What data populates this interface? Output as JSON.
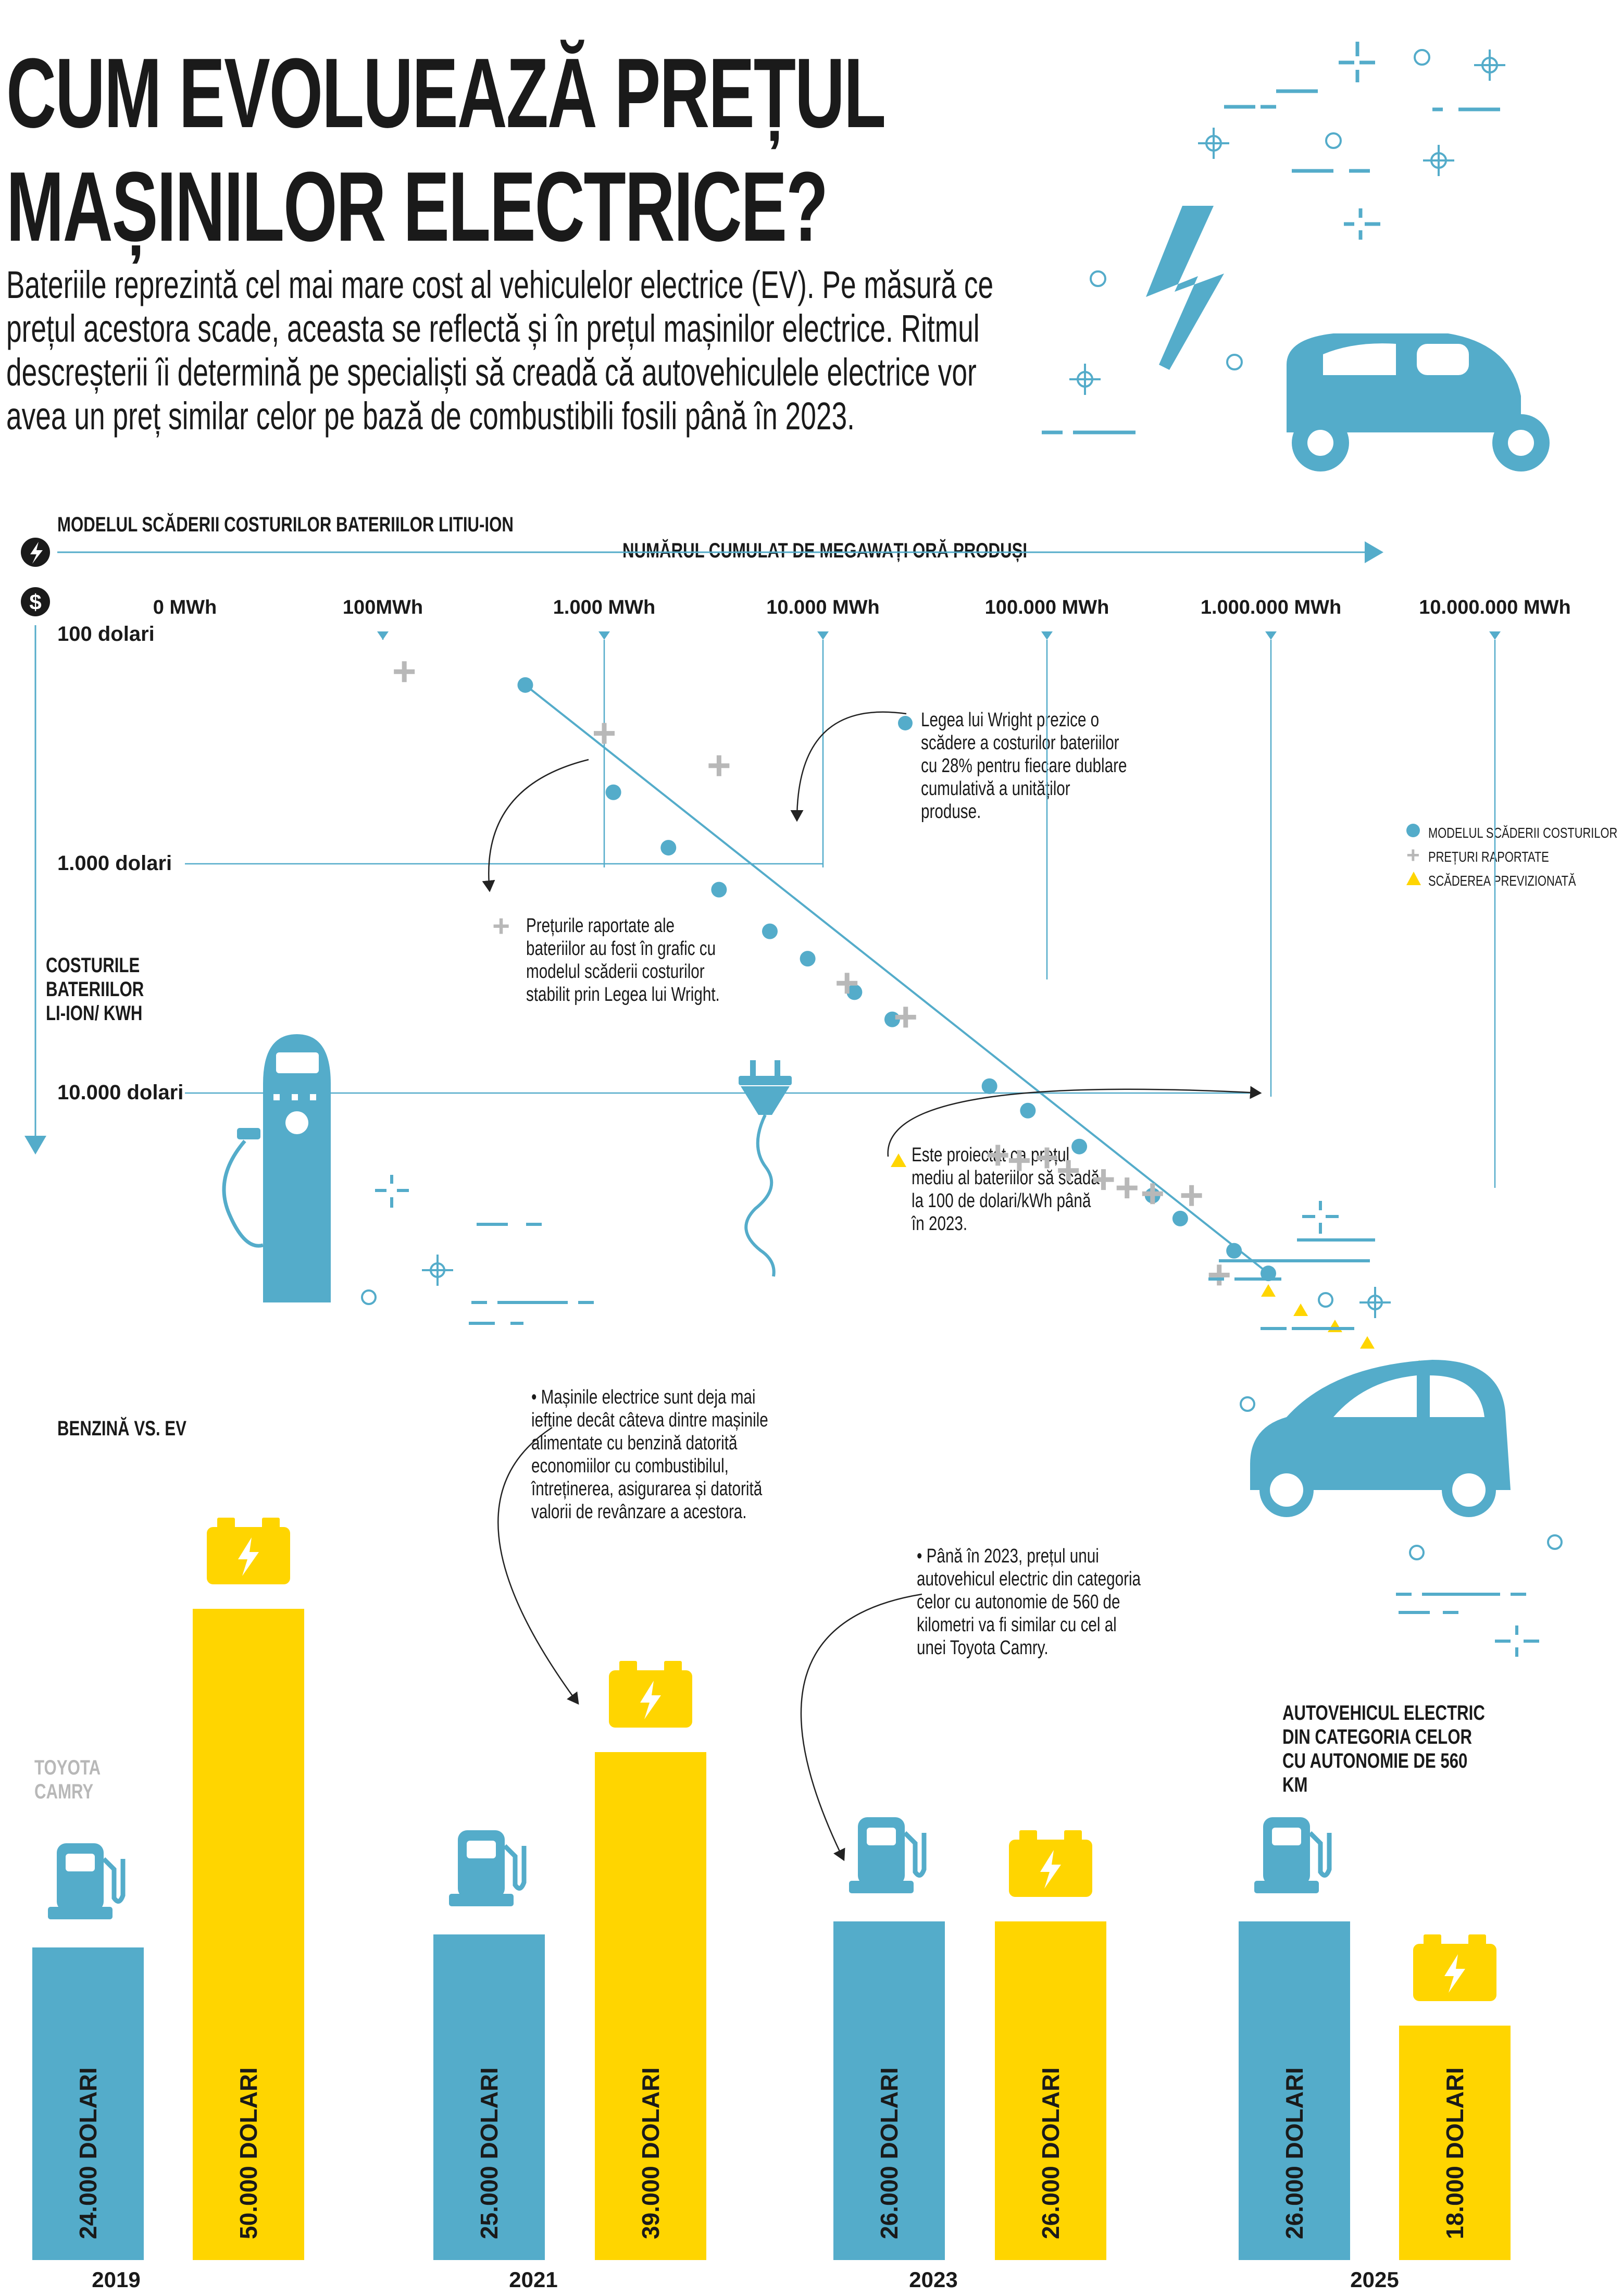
{
  "title": {
    "line1": "CUM EVOLUEAZĂ PREȚUL",
    "line2": "MAȘINILOR ELECTRICE?"
  },
  "intro": "Bateriile reprezintă cel mai mare cost al vehiculelor electrice (EV). Pe măsură ce prețul acestora scade, aceasta se reflectă și în prețul mașinilor electrice. Ritmul descreșterii îi determină pe specialiști să creadă că autovehiculele electrice vor avea un preț similar celor pe bază de combustibili fosili până în 2023.",
  "colors": {
    "blue": "#54acca",
    "yellow": "#ffd500",
    "gray": "#b8b8b8",
    "text": "#1a1a1a"
  },
  "chart_data": [
    {
      "type": "scatter",
      "title": "MODELUL SCĂDERII COSTURILOR BATERIILOR LITIU-ION",
      "xlabel": "NUMĂRUL CUMULAT DE MEGAWAȚI ORĂ PRODUȘI",
      "ylabel": "COSTURILE BATERIILOR LI-ION/ KWH",
      "x_ticks": [
        "0 MWh",
        "100MWh",
        "1.000 MWh",
        "10.000 MWh",
        "100.000 MWh",
        "1.000.000 MWh",
        "10.000.000 MWh"
      ],
      "y_ticks": [
        "100 dolari",
        "1.000 dolari",
        "10.000 dolari"
      ],
      "x_scale": "log",
      "legend": [
        "MODELUL SCĂDERII COSTURILOR",
        "PREȚURI RAPORTATE",
        "SCĂDEREA PREVIZIONATĂ"
      ],
      "legend_position": "right",
      "series": [
        {
          "name": "MODELUL SCĂDERII COSTURILOR",
          "marker": "circle",
          "color": "#54acca",
          "points": [
            [
              440,
              16
            ],
            [
              1100,
              47
            ],
            [
              1950,
              82
            ],
            [
              3300,
              125
            ],
            [
              5600,
              190
            ],
            [
              8300,
              250
            ],
            [
              13500,
              350
            ],
            [
              20000,
              460
            ],
            [
              55000,
              900
            ],
            [
              82000,
              1150
            ],
            [
              140000,
              1650
            ],
            [
              300000,
              2700
            ],
            [
              400000,
              3400
            ],
            [
              700000,
              4700
            ],
            [
              1000000,
              5900
            ]
          ]
        },
        {
          "name": "PREȚURI RAPORTATE",
          "marker": "plus",
          "color": "#b8b8b8",
          "points": [
            [
              125,
              14
            ],
            [
              1000,
              26
            ],
            [
              3300,
              36
            ],
            [
              12500,
              320
            ],
            [
              23000,
              450
            ],
            [
              60000,
              1800
            ],
            [
              75000,
              1900
            ],
            [
              100000,
              1850
            ],
            [
              125000,
              2100
            ],
            [
              180000,
              2300
            ],
            [
              230000,
              2500
            ],
            [
              300000,
              2650
            ],
            [
              450000,
              2700
            ],
            [
              600000,
              6000
            ]
          ]
        },
        {
          "name": "SCĂDEREA PREVIZIONATĂ",
          "marker": "triangle",
          "color": "#ffd500",
          "points": [
            [
              1000000,
              7000
            ],
            [
              1400000,
              8500
            ],
            [
              2000000,
              10000
            ],
            [
              2800000,
              11800
            ],
            [
              4800000,
              15000
            ],
            [
              8000000,
              19000
            ]
          ]
        }
      ],
      "annotations": [
        "Legea lui Wright prezice o scădere a costurilor bateriilor cu 28% pentru fiecare dublare cumulativă a unităților produse.",
        "Prețurile raportate ale bateriilor au fost în grafic cu modelul scăderii costurilor stabilit prin Legea lui Wright.",
        "Este proiectat ca prețul mediu al bateriilor să scadă la 100 de dolari/kWh până în 2023."
      ]
    },
    {
      "type": "bar",
      "title": "BENZINĂ VS. EV",
      "categories": [
        "2019",
        "2021",
        "2023",
        "2025"
      ],
      "ylim": [
        0,
        55000
      ],
      "series": [
        {
          "name": "TOYOTA CAMRY",
          "color": "#54acca",
          "values": [
            24000,
            25000,
            26000,
            26000
          ],
          "labels": [
            "24.000 DOLARI",
            "25.000 DOLARI",
            "26.000 DOLARI",
            "26.000 DOLARI"
          ]
        },
        {
          "name": "AUTOVEHICUL ELECTRIC DIN CATEGORIA CELOR CU AUTONOMIE DE 560 KM",
          "color": "#ffd500",
          "values": [
            50000,
            39000,
            26000,
            18000
          ],
          "labels": [
            "50.000 DOLARI",
            "39.000 DOLARI",
            "26.000 DOLARI",
            "18.000 DOLARI"
          ]
        }
      ],
      "annotations": [
        "• Mașinile electrice sunt deja mai ieftine decât câteva dintre mașinile alimentate cu benzină datorită economiilor cu combustibilul, întreținerea, asigurarea și datorită valorii de revânzare a acestora.",
        "• Până în 2023, prețul unui autovehicul electric din categoria celor cu autonomie de 560 de kilometri va fi similar cu cel al unei Toyota Camry."
      ]
    }
  ],
  "icons": [
    "lightning-icon",
    "dollar-icon",
    "charging-station-icon",
    "plug-icon",
    "fuel-pump-icon",
    "battery-icon",
    "electric-car-icon",
    "electric-motorcycle-icon"
  ]
}
